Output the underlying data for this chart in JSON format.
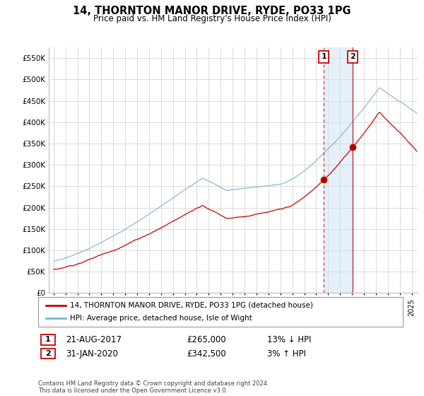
{
  "title": "14, THORNTON MANOR DRIVE, RYDE, PO33 1PG",
  "subtitle": "Price paid vs. HM Land Registry's House Price Index (HPI)",
  "ylabel_ticks": [
    "£0",
    "£50K",
    "£100K",
    "£150K",
    "£200K",
    "£250K",
    "£300K",
    "£350K",
    "£400K",
    "£450K",
    "£500K",
    "£550K"
  ],
  "ytick_values": [
    0,
    50000,
    100000,
    150000,
    200000,
    250000,
    300000,
    350000,
    400000,
    450000,
    500000,
    550000
  ],
  "ylim": [
    0,
    575000
  ],
  "xlim_start": 1994.6,
  "xlim_end": 2025.5,
  "hpi_color": "#7ab3d4",
  "price_color": "#cc0000",
  "marker1_x": 2017.64,
  "marker1_y": 265000,
  "marker2_x": 2020.08,
  "marker2_y": 342500,
  "vline1_x": 2017.64,
  "vline2_x": 2020.08,
  "legend_red_label": "14, THORNTON MANOR DRIVE, RYDE, PO33 1PG (detached house)",
  "legend_blue_label": "HPI: Average price, detached house, Isle of Wight",
  "annotation1_num": "1",
  "annotation1_date": "21-AUG-2017",
  "annotation1_price": "£265,000",
  "annotation1_pct": "13% ↓ HPI",
  "annotation2_num": "2",
  "annotation2_date": "31-JAN-2020",
  "annotation2_price": "£342,500",
  "annotation2_pct": "3% ↑ HPI",
  "footnote": "Contains HM Land Registry data © Crown copyright and database right 2024.\nThis data is licensed under the Open Government Licence v3.0.",
  "background_color": "#ffffff",
  "grid_color": "#cccccc",
  "xtick_years": [
    1995,
    1996,
    1997,
    1998,
    1999,
    2000,
    2001,
    2002,
    2003,
    2004,
    2005,
    2006,
    2007,
    2008,
    2009,
    2010,
    2011,
    2012,
    2013,
    2014,
    2015,
    2016,
    2017,
    2018,
    2019,
    2020,
    2021,
    2022,
    2023,
    2024,
    2025
  ]
}
